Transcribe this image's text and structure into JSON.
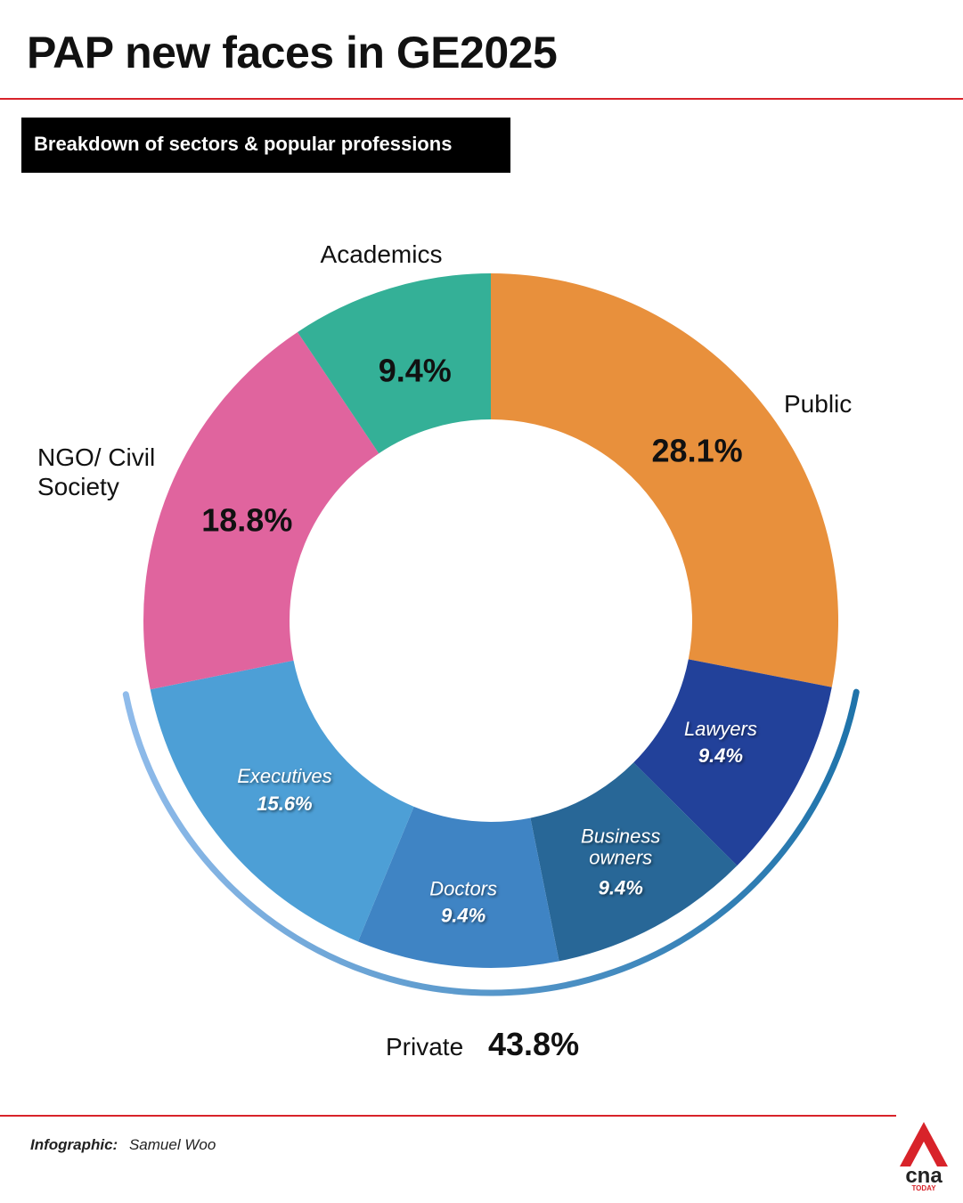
{
  "header": {
    "title": "PAP new faces in GE2025",
    "subtitle": "Breakdown of sectors & popular professions"
  },
  "chart_data": {
    "type": "pie",
    "variant": "donut",
    "title": "PAP new faces in GE2025",
    "subtitle": "Breakdown of sectors & popular professions",
    "segments": [
      {
        "key": "public",
        "label": "Public",
        "value": 28.1,
        "value_label": "28.1%",
        "color": "#e8903c"
      },
      {
        "key": "lawyers",
        "label": "Lawyers",
        "value": 9.4,
        "value_label": "9.4%",
        "color": "#22419a"
      },
      {
        "key": "business",
        "label": "Business owners",
        "label_lines": [
          "Business",
          "owners"
        ],
        "value": 9.4,
        "value_label": "9.4%",
        "color": "#286797"
      },
      {
        "key": "doctors",
        "label": "Doctors",
        "value": 9.4,
        "value_label": "9.4%",
        "color": "#3f84c4"
      },
      {
        "key": "executives",
        "label": "Executives",
        "value": 15.6,
        "value_label": "15.6%",
        "color": "#4d9fd6"
      },
      {
        "key": "ngo",
        "label": "NGO/ Civil Society",
        "label_lines": [
          "NGO/ Civil",
          "Society"
        ],
        "value": 18.8,
        "value_label": "18.8%",
        "color": "#e0649e"
      },
      {
        "key": "academics",
        "label": "Academics",
        "value": 9.4,
        "value_label": "9.4%",
        "color": "#34b097"
      }
    ],
    "group": {
      "label": "Private",
      "value": 43.8,
      "value_label": "43.8%",
      "members": [
        "lawyers",
        "business",
        "doctors",
        "executives"
      ],
      "bracket_colors": [
        "#8fbbea",
        "#1f73aa"
      ]
    }
  },
  "footer": {
    "credit_label": "Infographic:",
    "credit_name": "Samuel Woo",
    "logo_text": "cna",
    "logo_subtext": "TODAY",
    "accent": "#d8232a"
  }
}
